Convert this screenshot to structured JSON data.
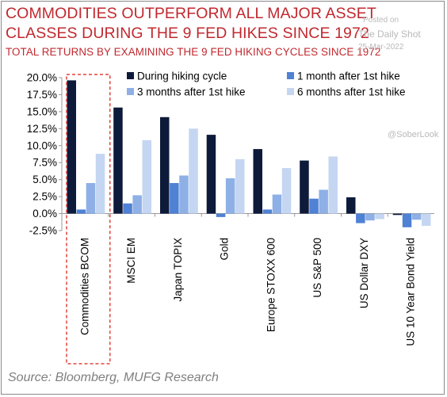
{
  "header": {
    "title_line1": "COMMODITIES OUTPERFORM ALL MAJOR ASSET",
    "title_line2": "CLASSES DURING THE 9 FED HIKES SINCE 1972",
    "subtitle": "TOTAL RETURNS BY EXAMINING THE 9 FED HIKING CYCLES SINCE 1972"
  },
  "watermark": {
    "posted": "Posted on",
    "site": "The Daily Shot",
    "date": "25-Mar-2022",
    "handle": "@SoberLook"
  },
  "source": "Source: Bloomberg, MUFG Research",
  "colors": {
    "title": "#c0292f",
    "highlight_box": "#e0443a"
  },
  "chart_data": {
    "type": "bar",
    "categories": [
      "Commodities BCOM",
      "MSCI EM",
      "Japan TOPIX",
      "Gold",
      "Europe STOXX 600",
      "US S&P 500",
      "US Dollar DXY",
      "US 10 Year Bond Yield"
    ],
    "series": [
      {
        "name": "During hiking cycle",
        "color": "#0e1a3a",
        "values": [
          19.6,
          15.6,
          14.2,
          11.6,
          9.5,
          7.8,
          2.4,
          -0.2
        ]
      },
      {
        "name": "1 month after 1st hike",
        "color": "#4f81d4",
        "values": [
          0.6,
          1.5,
          4.5,
          -0.5,
          0.6,
          2.2,
          -1.4,
          -2.0
        ]
      },
      {
        "name": "3 months after 1st hike",
        "color": "#8eb0e6",
        "values": [
          4.5,
          2.7,
          5.6,
          5.2,
          2.8,
          3.5,
          -1.0,
          -0.9
        ]
      },
      {
        "name": "6 months after 1st hike",
        "color": "#c5d6f2",
        "values": [
          8.8,
          10.8,
          12.5,
          8.0,
          6.7,
          8.4,
          -0.8,
          -1.8
        ]
      }
    ],
    "yticks": [
      "20.0%",
      "17.5%",
      "15.0%",
      "12.5%",
      "10.0%",
      "7.5%",
      "5.0%",
      "2.5%",
      "0.0%",
      "-2.5%"
    ],
    "ylim": [
      -2.5,
      20
    ],
    "highlighted_category": "Commodities BCOM",
    "legend_position": "top-right",
    "grid": false,
    "title": "",
    "xlabel": "",
    "ylabel": ""
  }
}
